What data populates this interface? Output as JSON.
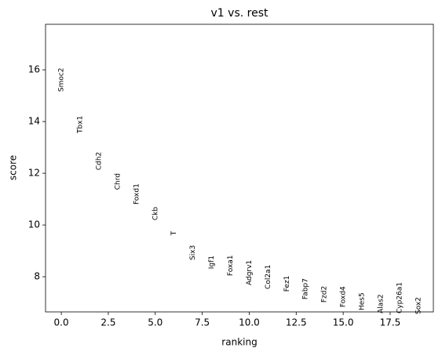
{
  "chart_data": {
    "type": "ranked_labels",
    "title": "v1 vs. rest",
    "x_label": "ranking",
    "y_label": "score",
    "labels": [
      "Smoc2",
      "Tbx1",
      "Cdh2",
      "Chrd",
      "Foxd1",
      "Ckb",
      "T",
      "Six3",
      "Igf1",
      "Foxa1",
      "Adgrv1",
      "Col2a1",
      "Fez1",
      "Fabp7",
      "Fzd2",
      "Foxd4",
      "Hes5",
      "Alas2",
      "Cyp26a1",
      "Sox2"
    ],
    "x": [
      0,
      1,
      2,
      3,
      4,
      5,
      6,
      7,
      8,
      9,
      10,
      11,
      12,
      13,
      14,
      15,
      16,
      17,
      18,
      19
    ],
    "values": [
      15.15,
      13.55,
      12.12,
      11.36,
      10.79,
      10.18,
      9.6,
      8.64,
      8.3,
      8.03,
      7.67,
      7.52,
      7.42,
      7.12,
      7.0,
      6.82,
      6.7,
      6.58,
      6.58,
      6.55
    ],
    "color": "#000000",
    "xlim": [
      -0.84,
      19.8
    ],
    "xticks": [
      {
        "value": 0,
        "label": "0.0"
      },
      {
        "value": 2.5,
        "label": "2.5"
      },
      {
        "value": 5,
        "label": "5.0"
      },
      {
        "value": 7.5,
        "label": "7.5"
      },
      {
        "value": 10,
        "label": "10.0"
      },
      {
        "value": 12.5,
        "label": "12.5"
      },
      {
        "value": 15,
        "label": "15.0"
      },
      {
        "value": 17.5,
        "label": "17.5"
      }
    ],
    "ylim": [
      6.64,
      17.76
    ],
    "yticks": [
      8,
      10,
      12,
      14,
      16
    ],
    "grid": false
  }
}
